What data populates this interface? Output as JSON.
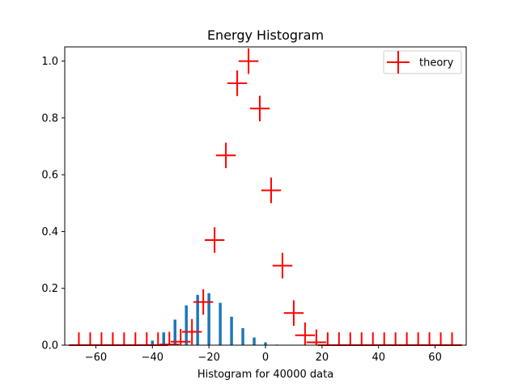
{
  "chart_data": {
    "type": "bar",
    "title": "Energy Histogram",
    "xlabel": "Histogram for 40000 data",
    "ylabel": "",
    "xlim": [
      -71,
      71
    ],
    "ylim": [
      0,
      1.05
    ],
    "xticks": [
      -60,
      -40,
      -20,
      0,
      20,
      40,
      60
    ],
    "xtick_labels": [
      "−60",
      "−40",
      "−20",
      "0",
      "20",
      "40",
      "60"
    ],
    "yticks": [
      0.0,
      0.2,
      0.4,
      0.6,
      0.8,
      1.0
    ],
    "ytick_labels": [
      "0.0",
      "0.2",
      "0.4",
      "0.6",
      "0.8",
      "1.0"
    ],
    "grid": false,
    "legend_position": "top-right",
    "colors": {
      "histogram": "#1f77b4",
      "theory": "#ff0000"
    },
    "histogram": {
      "bar_centers": [
        -40,
        -36,
        -32,
        -28,
        -24,
        -20,
        -16,
        -12,
        -8,
        -4,
        0,
        4
      ],
      "values": [
        0.016,
        0.045,
        0.09,
        0.14,
        0.177,
        0.183,
        0.149,
        0.1,
        0.06,
        0.027,
        0.01,
        0.002
      ]
    },
    "series": [
      {
        "name": "theory",
        "type": "errorbar",
        "x": [
          -66,
          -62,
          -58,
          -54,
          -50,
          -46,
          -42,
          -38,
          -34,
          -30,
          -26,
          -22,
          -18,
          -14,
          -10,
          -6,
          -2,
          2,
          6,
          10,
          14,
          18,
          22,
          26,
          30,
          34,
          38,
          42,
          46,
          50,
          54,
          58,
          62,
          66
        ],
        "y": [
          0,
          0,
          0,
          0,
          0,
          0,
          0,
          0,
          0.002,
          0.012,
          0.047,
          0.152,
          0.37,
          0.668,
          0.922,
          1.0,
          0.833,
          0.545,
          0.28,
          0.113,
          0.035,
          0.01,
          0,
          0,
          0,
          0,
          0,
          0,
          0,
          0,
          0,
          0,
          0,
          0
        ],
        "xerr": 3.5,
        "yerr": 0.045
      }
    ]
  }
}
